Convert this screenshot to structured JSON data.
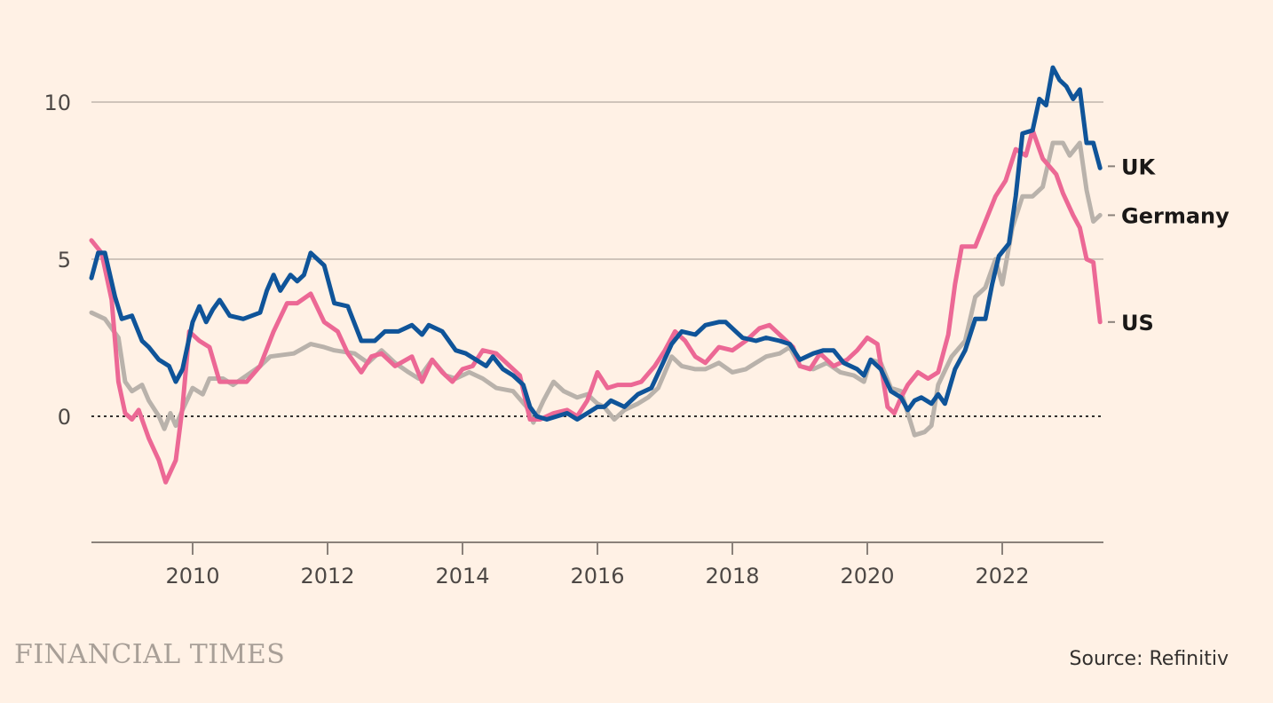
{
  "footer": {
    "brand": "FINANCIAL TIMES",
    "source": "Source: Refinitiv"
  },
  "chart_data": {
    "type": "line",
    "title": "",
    "xlabel": "",
    "ylabel": "",
    "xlim": [
      2008.5,
      2023.5
    ],
    "ylim": [
      -4,
      12
    ],
    "yticks": [
      0,
      5,
      10
    ],
    "ytick_labels": [
      "0",
      "5",
      "10"
    ],
    "xticks": [
      2010,
      2012,
      2014,
      2016,
      2018,
      2020,
      2022
    ],
    "xtick_labels": [
      "2010",
      "2012",
      "2014",
      "2016",
      "2018",
      "2020",
      "2022"
    ],
    "zero_line": "dotted",
    "grid": "horizontal",
    "legend": "direct labels at right end of lines",
    "series": [
      {
        "name": "Germany",
        "color": "#B9B2AB",
        "points": [
          [
            2008.5,
            3.3
          ],
          [
            2008.7,
            3.1
          ],
          [
            2008.9,
            2.5
          ],
          [
            2009.0,
            1.1
          ],
          [
            2009.1,
            0.8
          ],
          [
            2009.25,
            1.0
          ],
          [
            2009.35,
            0.5
          ],
          [
            2009.5,
            0.0
          ],
          [
            2009.58,
            -0.4
          ],
          [
            2009.67,
            0.1
          ],
          [
            2009.75,
            -0.3
          ],
          [
            2009.85,
            0.2
          ],
          [
            2010.0,
            0.9
          ],
          [
            2010.15,
            0.7
          ],
          [
            2010.25,
            1.2
          ],
          [
            2010.45,
            1.2
          ],
          [
            2010.6,
            1.0
          ],
          [
            2010.8,
            1.3
          ],
          [
            2011.0,
            1.6
          ],
          [
            2011.15,
            1.9
          ],
          [
            2011.5,
            2.0
          ],
          [
            2011.75,
            2.3
          ],
          [
            2011.95,
            2.2
          ],
          [
            2012.1,
            2.1
          ],
          [
            2012.4,
            2.0
          ],
          [
            2012.6,
            1.7
          ],
          [
            2012.8,
            2.1
          ],
          [
            2013.0,
            1.7
          ],
          [
            2013.2,
            1.4
          ],
          [
            2013.35,
            1.2
          ],
          [
            2013.55,
            1.8
          ],
          [
            2013.75,
            1.3
          ],
          [
            2013.9,
            1.2
          ],
          [
            2014.1,
            1.4
          ],
          [
            2014.3,
            1.2
          ],
          [
            2014.5,
            0.9
          ],
          [
            2014.75,
            0.8
          ],
          [
            2014.95,
            0.3
          ],
          [
            2015.05,
            -0.2
          ],
          [
            2015.2,
            0.5
          ],
          [
            2015.35,
            1.1
          ],
          [
            2015.5,
            0.8
          ],
          [
            2015.7,
            0.6
          ],
          [
            2015.85,
            0.7
          ],
          [
            2016.0,
            0.4
          ],
          [
            2016.1,
            0.3
          ],
          [
            2016.25,
            -0.1
          ],
          [
            2016.4,
            0.2
          ],
          [
            2016.6,
            0.4
          ],
          [
            2016.75,
            0.6
          ],
          [
            2016.9,
            0.9
          ],
          [
            2017.1,
            1.9
          ],
          [
            2017.25,
            1.6
          ],
          [
            2017.45,
            1.5
          ],
          [
            2017.6,
            1.5
          ],
          [
            2017.8,
            1.7
          ],
          [
            2018.0,
            1.4
          ],
          [
            2018.2,
            1.5
          ],
          [
            2018.35,
            1.7
          ],
          [
            2018.5,
            1.9
          ],
          [
            2018.7,
            2.0
          ],
          [
            2018.85,
            2.2
          ],
          [
            2019.0,
            1.6
          ],
          [
            2019.2,
            1.5
          ],
          [
            2019.4,
            1.7
          ],
          [
            2019.6,
            1.4
          ],
          [
            2019.8,
            1.3
          ],
          [
            2019.95,
            1.1
          ],
          [
            2020.05,
            1.8
          ],
          [
            2020.2,
            1.7
          ],
          [
            2020.35,
            0.9
          ],
          [
            2020.5,
            0.8
          ],
          [
            2020.6,
            0.1
          ],
          [
            2020.7,
            -0.6
          ],
          [
            2020.85,
            -0.5
          ],
          [
            2020.95,
            -0.3
          ],
          [
            2021.05,
            1.0
          ],
          [
            2021.25,
            1.9
          ],
          [
            2021.45,
            2.4
          ],
          [
            2021.6,
            3.8
          ],
          [
            2021.75,
            4.1
          ],
          [
            2021.9,
            5.0
          ],
          [
            2022.0,
            4.2
          ],
          [
            2022.15,
            6.0
          ],
          [
            2022.3,
            7.0
          ],
          [
            2022.45,
            7.0
          ],
          [
            2022.6,
            7.3
          ],
          [
            2022.75,
            8.7
          ],
          [
            2022.9,
            8.7
          ],
          [
            2023.0,
            8.3
          ],
          [
            2023.15,
            8.7
          ],
          [
            2023.25,
            7.2
          ],
          [
            2023.35,
            6.2
          ],
          [
            2023.45,
            6.4
          ]
        ]
      },
      {
        "name": "US",
        "color": "#EC6895",
        "points": [
          [
            2008.5,
            5.6
          ],
          [
            2008.65,
            5.2
          ],
          [
            2008.8,
            3.7
          ],
          [
            2008.9,
            1.1
          ],
          [
            2009.0,
            0.1
          ],
          [
            2009.1,
            -0.1
          ],
          [
            2009.2,
            0.2
          ],
          [
            2009.35,
            -0.7
          ],
          [
            2009.5,
            -1.4
          ],
          [
            2009.6,
            -2.1
          ],
          [
            2009.75,
            -1.4
          ],
          [
            2009.85,
            0.3
          ],
          [
            2009.95,
            2.7
          ],
          [
            2010.1,
            2.4
          ],
          [
            2010.25,
            2.2
          ],
          [
            2010.4,
            1.1
          ],
          [
            2010.55,
            1.1
          ],
          [
            2010.8,
            1.1
          ],
          [
            2011.0,
            1.6
          ],
          [
            2011.2,
            2.7
          ],
          [
            2011.4,
            3.6
          ],
          [
            2011.55,
            3.6
          ],
          [
            2011.75,
            3.9
          ],
          [
            2011.95,
            3.0
          ],
          [
            2012.15,
            2.7
          ],
          [
            2012.3,
            2.0
          ],
          [
            2012.5,
            1.4
          ],
          [
            2012.65,
            1.9
          ],
          [
            2012.8,
            2.0
          ],
          [
            2013.0,
            1.6
          ],
          [
            2013.25,
            1.9
          ],
          [
            2013.4,
            1.1
          ],
          [
            2013.55,
            1.8
          ],
          [
            2013.7,
            1.4
          ],
          [
            2013.85,
            1.1
          ],
          [
            2014.0,
            1.5
          ],
          [
            2014.15,
            1.6
          ],
          [
            2014.3,
            2.1
          ],
          [
            2014.5,
            2.0
          ],
          [
            2014.65,
            1.7
          ],
          [
            2014.85,
            1.3
          ],
          [
            2015.0,
            -0.1
          ],
          [
            2015.15,
            -0.1
          ],
          [
            2015.35,
            0.1
          ],
          [
            2015.55,
            0.2
          ],
          [
            2015.7,
            0.0
          ],
          [
            2015.85,
            0.5
          ],
          [
            2016.0,
            1.4
          ],
          [
            2016.15,
            0.9
          ],
          [
            2016.3,
            1.0
          ],
          [
            2016.5,
            1.0
          ],
          [
            2016.65,
            1.1
          ],
          [
            2016.85,
            1.6
          ],
          [
            2017.0,
            2.1
          ],
          [
            2017.15,
            2.7
          ],
          [
            2017.3,
            2.4
          ],
          [
            2017.45,
            1.9
          ],
          [
            2017.6,
            1.7
          ],
          [
            2017.8,
            2.2
          ],
          [
            2018.0,
            2.1
          ],
          [
            2018.2,
            2.4
          ],
          [
            2018.4,
            2.8
          ],
          [
            2018.55,
            2.9
          ],
          [
            2018.75,
            2.5
          ],
          [
            2018.9,
            2.2
          ],
          [
            2019.0,
            1.6
          ],
          [
            2019.15,
            1.5
          ],
          [
            2019.3,
            2.0
          ],
          [
            2019.5,
            1.6
          ],
          [
            2019.7,
            1.8
          ],
          [
            2019.85,
            2.1
          ],
          [
            2020.0,
            2.5
          ],
          [
            2020.15,
            2.3
          ],
          [
            2020.3,
            0.3
          ],
          [
            2020.4,
            0.1
          ],
          [
            2020.5,
            0.6
          ],
          [
            2020.6,
            1.0
          ],
          [
            2020.75,
            1.4
          ],
          [
            2020.9,
            1.2
          ],
          [
            2021.05,
            1.4
          ],
          [
            2021.2,
            2.6
          ],
          [
            2021.3,
            4.2
          ],
          [
            2021.4,
            5.4
          ],
          [
            2021.6,
            5.4
          ],
          [
            2021.75,
            6.2
          ],
          [
            2021.9,
            7.0
          ],
          [
            2022.05,
            7.5
          ],
          [
            2022.2,
            8.5
          ],
          [
            2022.35,
            8.3
          ],
          [
            2022.45,
            9.1
          ],
          [
            2022.6,
            8.2
          ],
          [
            2022.8,
            7.7
          ],
          [
            2022.9,
            7.1
          ],
          [
            2023.05,
            6.4
          ],
          [
            2023.15,
            6.0
          ],
          [
            2023.25,
            5.0
          ],
          [
            2023.35,
            4.9
          ],
          [
            2023.45,
            3.0
          ]
        ]
      },
      {
        "name": "UK",
        "color": "#0F5499",
        "points": [
          [
            2008.5,
            4.4
          ],
          [
            2008.6,
            5.2
          ],
          [
            2008.7,
            5.2
          ],
          [
            2008.85,
            3.8
          ],
          [
            2008.95,
            3.1
          ],
          [
            2009.1,
            3.2
          ],
          [
            2009.25,
            2.4
          ],
          [
            2009.35,
            2.2
          ],
          [
            2009.5,
            1.8
          ],
          [
            2009.65,
            1.6
          ],
          [
            2009.75,
            1.1
          ],
          [
            2009.85,
            1.5
          ],
          [
            2010.0,
            3.0
          ],
          [
            2010.1,
            3.5
          ],
          [
            2010.2,
            3.0
          ],
          [
            2010.3,
            3.4
          ],
          [
            2010.4,
            3.7
          ],
          [
            2010.55,
            3.2
          ],
          [
            2010.75,
            3.1
          ],
          [
            2011.0,
            3.3
          ],
          [
            2011.1,
            4.0
          ],
          [
            2011.2,
            4.5
          ],
          [
            2011.3,
            4.0
          ],
          [
            2011.45,
            4.5
          ],
          [
            2011.55,
            4.3
          ],
          [
            2011.65,
            4.5
          ],
          [
            2011.75,
            5.2
          ],
          [
            2011.95,
            4.8
          ],
          [
            2012.1,
            3.6
          ],
          [
            2012.3,
            3.5
          ],
          [
            2012.5,
            2.4
          ],
          [
            2012.7,
            2.4
          ],
          [
            2012.85,
            2.7
          ],
          [
            2013.05,
            2.7
          ],
          [
            2013.25,
            2.9
          ],
          [
            2013.4,
            2.6
          ],
          [
            2013.5,
            2.9
          ],
          [
            2013.7,
            2.7
          ],
          [
            2013.9,
            2.1
          ],
          [
            2014.05,
            2.0
          ],
          [
            2014.2,
            1.8
          ],
          [
            2014.35,
            1.6
          ],
          [
            2014.45,
            1.9
          ],
          [
            2014.6,
            1.5
          ],
          [
            2014.75,
            1.3
          ],
          [
            2014.9,
            1.0
          ],
          [
            2015.0,
            0.3
          ],
          [
            2015.1,
            0.0
          ],
          [
            2015.25,
            -0.1
          ],
          [
            2015.4,
            0.0
          ],
          [
            2015.55,
            0.1
          ],
          [
            2015.7,
            -0.1
          ],
          [
            2015.85,
            0.1
          ],
          [
            2016.0,
            0.3
          ],
          [
            2016.1,
            0.3
          ],
          [
            2016.2,
            0.5
          ],
          [
            2016.4,
            0.3
          ],
          [
            2016.6,
            0.7
          ],
          [
            2016.8,
            0.9
          ],
          [
            2016.95,
            1.6
          ],
          [
            2017.1,
            2.3
          ],
          [
            2017.25,
            2.7
          ],
          [
            2017.45,
            2.6
          ],
          [
            2017.6,
            2.9
          ],
          [
            2017.8,
            3.0
          ],
          [
            2017.9,
            3.0
          ],
          [
            2018.05,
            2.7
          ],
          [
            2018.15,
            2.5
          ],
          [
            2018.35,
            2.4
          ],
          [
            2018.5,
            2.5
          ],
          [
            2018.7,
            2.4
          ],
          [
            2018.85,
            2.3
          ],
          [
            2019.0,
            1.8
          ],
          [
            2019.2,
            2.0
          ],
          [
            2019.35,
            2.1
          ],
          [
            2019.5,
            2.1
          ],
          [
            2019.65,
            1.7
          ],
          [
            2019.85,
            1.5
          ],
          [
            2019.95,
            1.3
          ],
          [
            2020.05,
            1.8
          ],
          [
            2020.2,
            1.5
          ],
          [
            2020.35,
            0.8
          ],
          [
            2020.5,
            0.6
          ],
          [
            2020.6,
            0.2
          ],
          [
            2020.7,
            0.5
          ],
          [
            2020.8,
            0.6
          ],
          [
            2020.95,
            0.4
          ],
          [
            2021.05,
            0.7
          ],
          [
            2021.15,
            0.4
          ],
          [
            2021.3,
            1.5
          ],
          [
            2021.45,
            2.1
          ],
          [
            2021.6,
            3.1
          ],
          [
            2021.75,
            3.1
          ],
          [
            2021.85,
            4.2
          ],
          [
            2021.95,
            5.1
          ],
          [
            2022.1,
            5.5
          ],
          [
            2022.2,
            7.0
          ],
          [
            2022.3,
            9.0
          ],
          [
            2022.45,
            9.1
          ],
          [
            2022.55,
            10.1
          ],
          [
            2022.65,
            9.9
          ],
          [
            2022.75,
            11.1
          ],
          [
            2022.85,
            10.7
          ],
          [
            2022.95,
            10.5
          ],
          [
            2023.05,
            10.1
          ],
          [
            2023.15,
            10.4
          ],
          [
            2023.25,
            8.7
          ],
          [
            2023.35,
            8.7
          ],
          [
            2023.45,
            7.9
          ]
        ]
      }
    ],
    "series_labels": [
      {
        "name": "UK",
        "text": "UK",
        "anchor_value": 7.9
      },
      {
        "name": "Germany",
        "text": "Germany",
        "anchor_value": 6.4
      },
      {
        "name": "US",
        "text": "US",
        "anchor_value": 3.0
      }
    ]
  }
}
